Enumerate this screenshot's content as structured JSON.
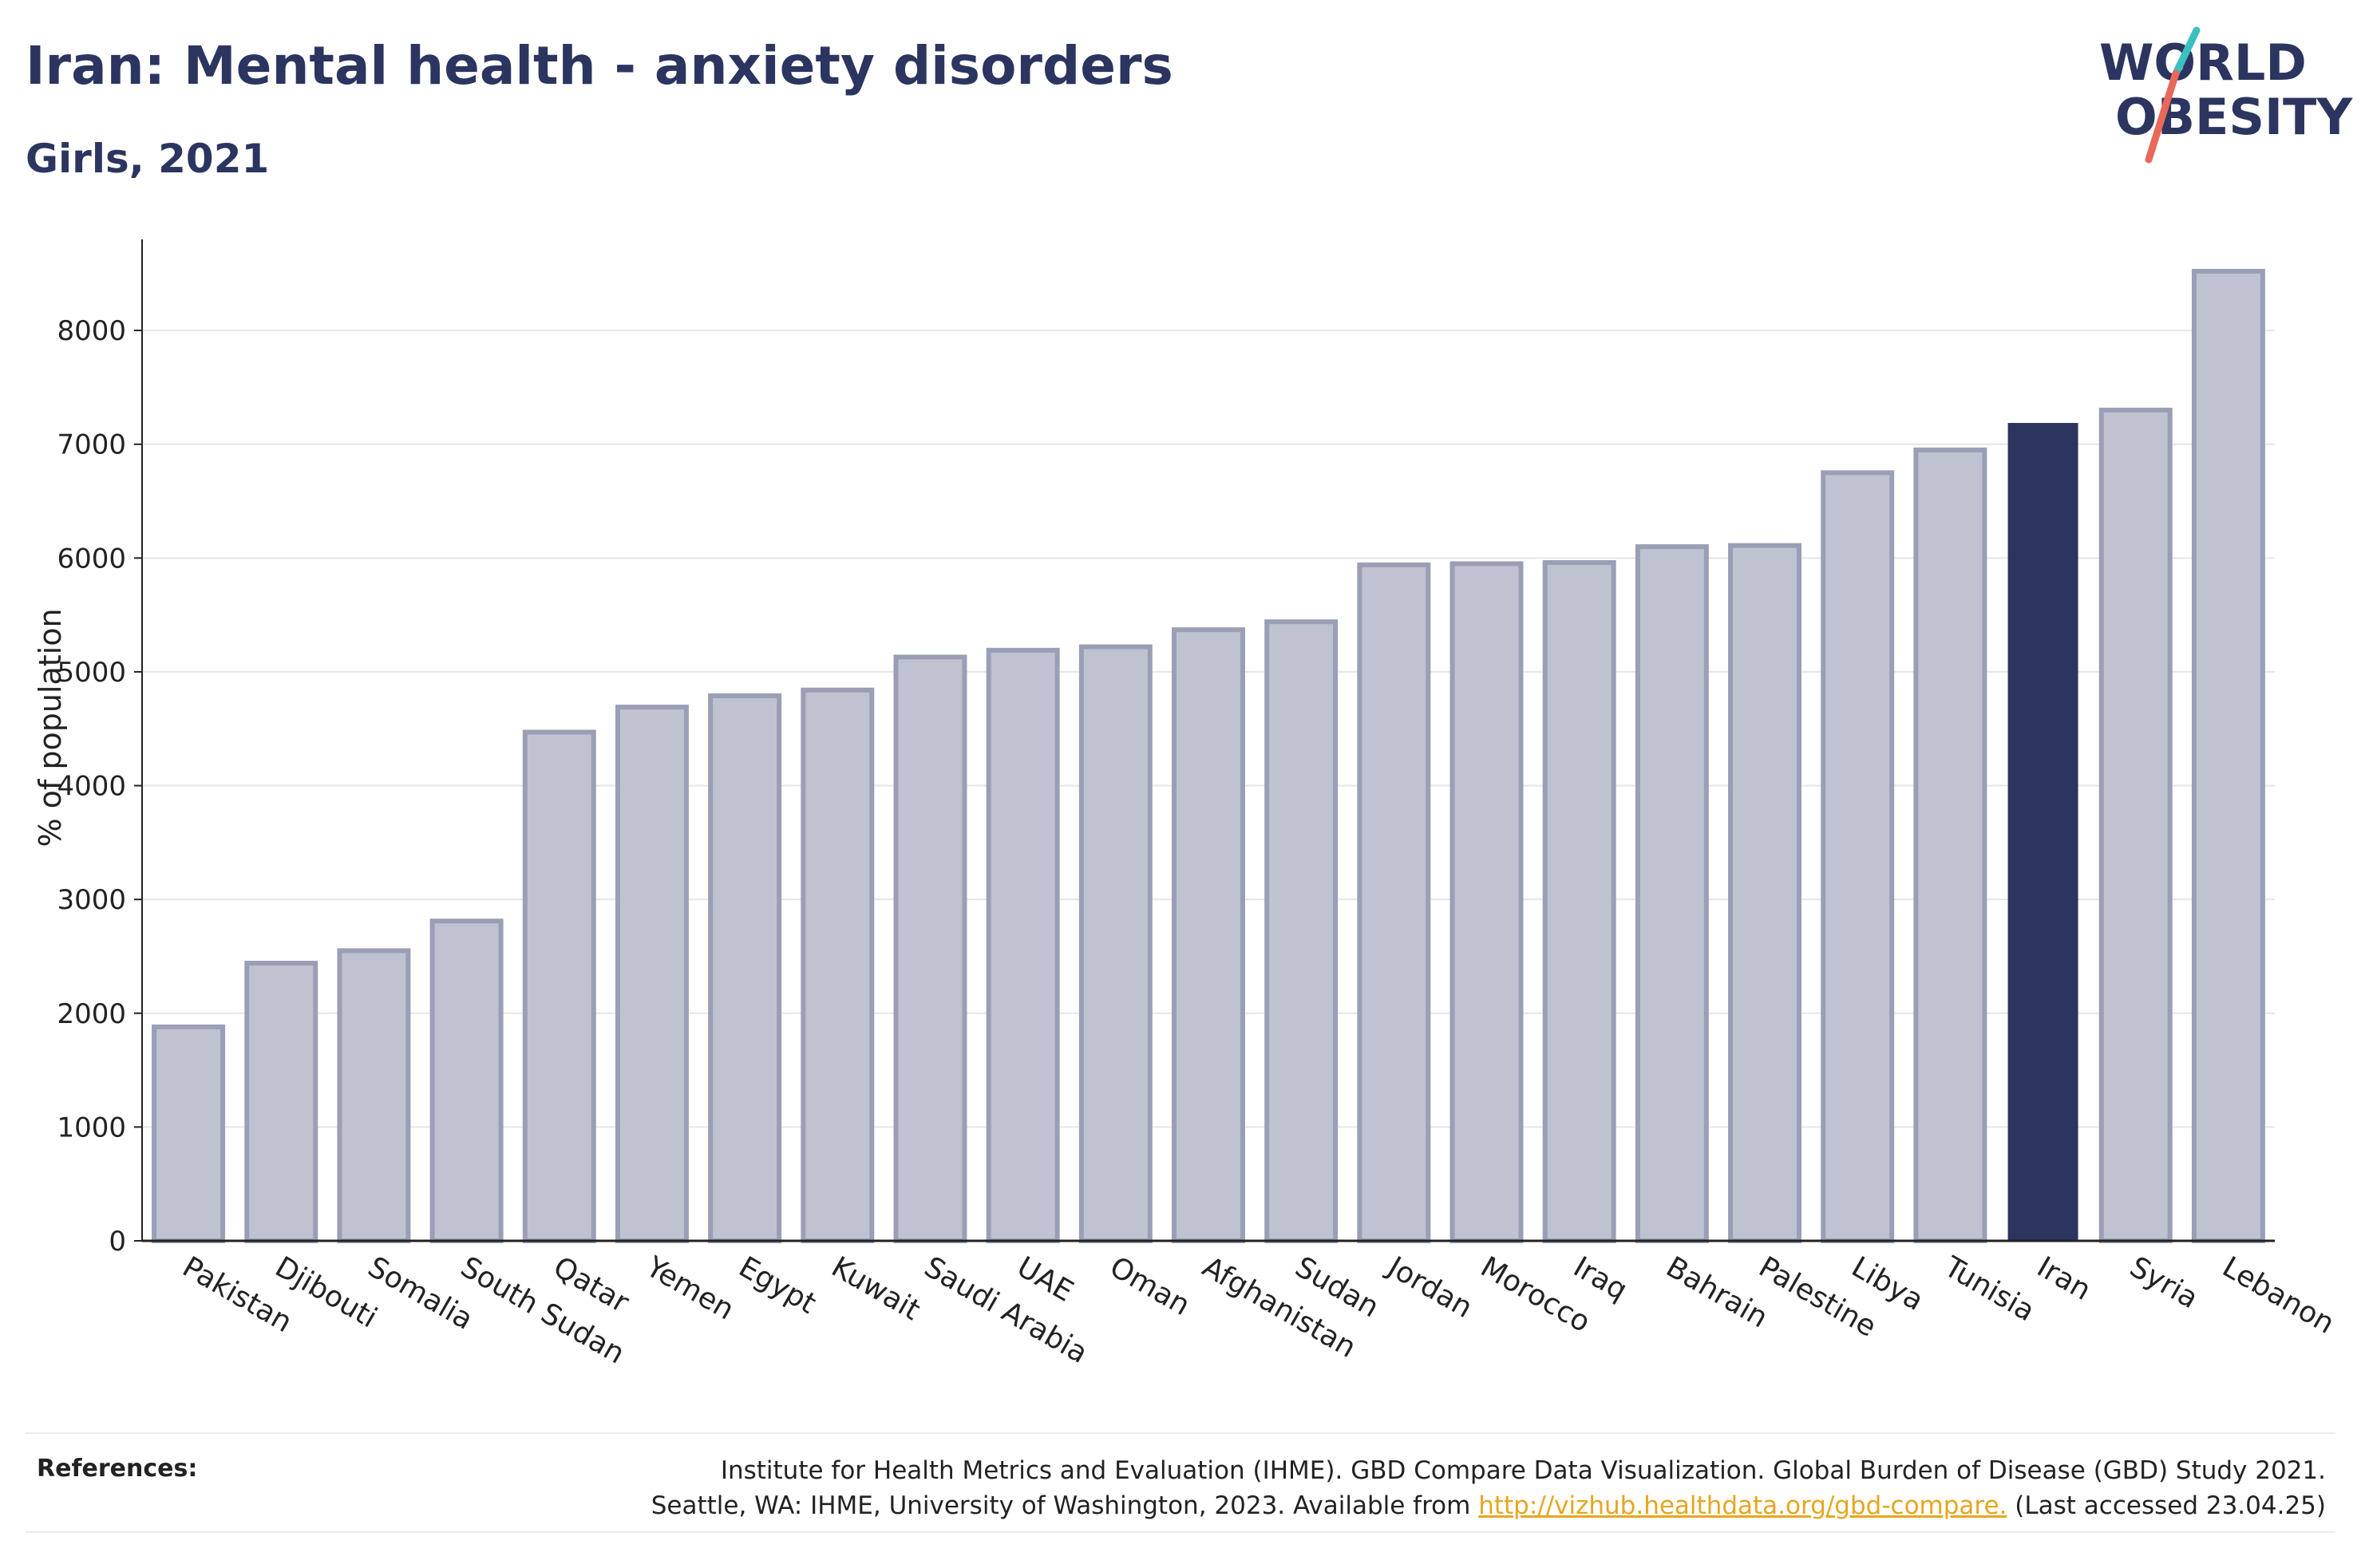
{
  "header": {
    "title": "Iran: Mental health - anxiety disorders",
    "subtitle": "Girls, 2021"
  },
  "logo": {
    "line1": "WORLD",
    "line2": "OBESITY",
    "colors": {
      "text": "#2b3560",
      "slash_teal": "#3bbfc0",
      "slash_coral": "#e8685a"
    }
  },
  "chart_data": {
    "type": "bar",
    "ylabel": "% of population",
    "xlabel": "",
    "ylim": [
      0,
      8800
    ],
    "yticks": [
      0,
      1000,
      2000,
      3000,
      4000,
      5000,
      6000,
      7000,
      8000
    ],
    "grid": true,
    "highlight": "Iran",
    "colors": {
      "bar": "#bfc2d0",
      "bar_border": "#9a9fb6",
      "highlight": "#2b3560",
      "axis": "#222222",
      "grid": "#e6e6e6"
    },
    "categories": [
      "Pakistan",
      "Djibouti",
      "Somalia",
      "South Sudan",
      "Qatar",
      "Yemen",
      "Egypt",
      "Kuwait",
      "Saudi Arabia",
      "UAE",
      "Oman",
      "Afghanistan",
      "Sudan",
      "Jordan",
      "Morocco",
      "Iraq",
      "Bahrain",
      "Palestine",
      "Libya",
      "Tunisia",
      "Iran",
      "Syria",
      "Lebanon"
    ],
    "values": [
      1880,
      2440,
      2550,
      2810,
      4470,
      4690,
      4790,
      4840,
      5130,
      5190,
      5220,
      5370,
      5440,
      5940,
      5950,
      5960,
      6100,
      6110,
      6750,
      6950,
      7180,
      7300,
      8520
    ]
  },
  "references": {
    "label": "References:",
    "line1": "Institute for Health Metrics and Evaluation (IHME). GBD Compare Data Visualization. Global Burden of Disease (GBD) Study 2021.",
    "line2_prefix": "Seattle, WA: IHME, University of Washington, 2023. Available from ",
    "link": "http://vizhub.healthdata.org/gbd-compare.",
    "line2_suffix": " (Last accessed 23.04.25)"
  }
}
